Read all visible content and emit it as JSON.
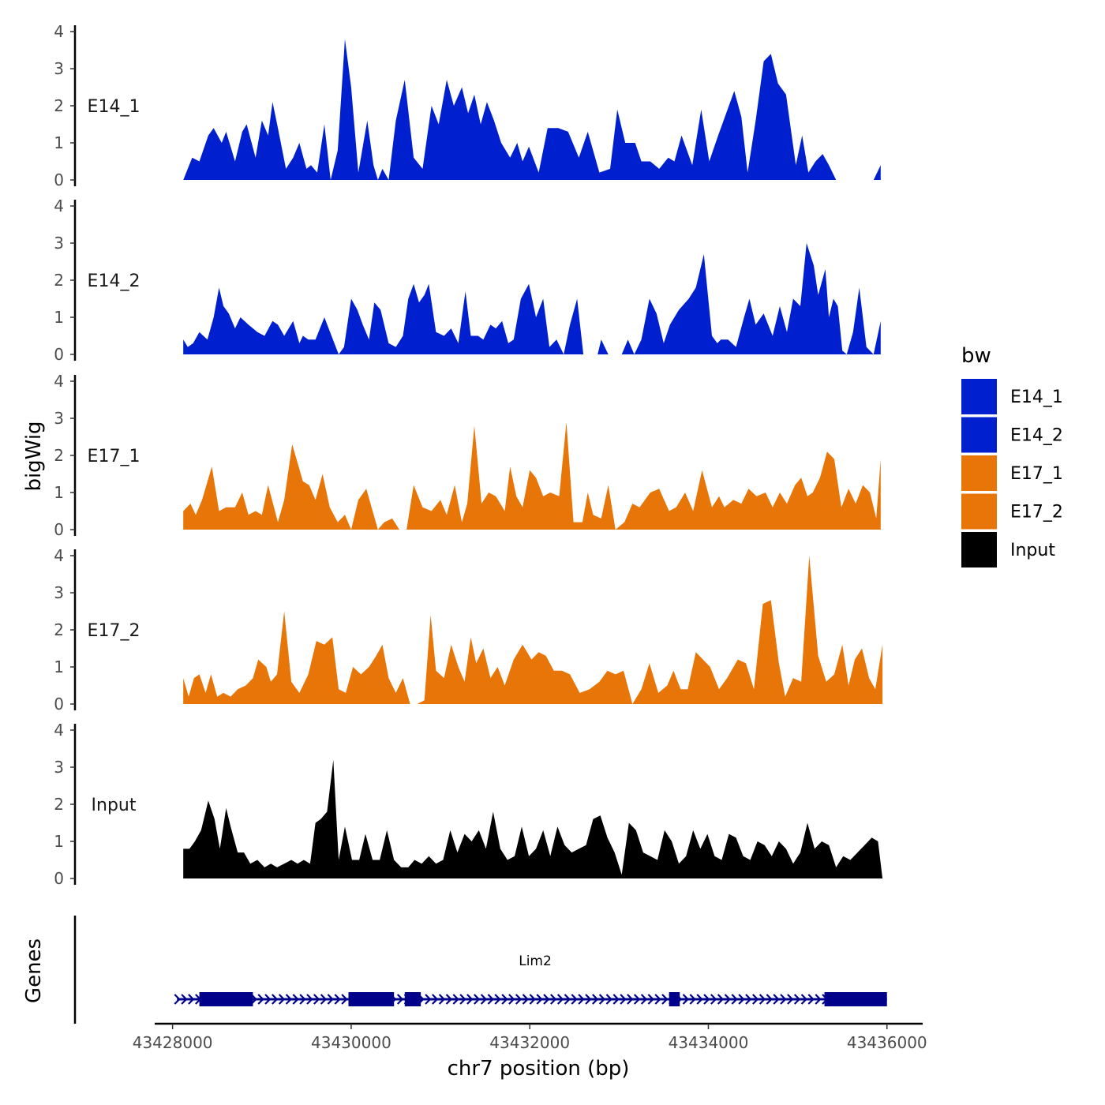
{
  "chart_data": {
    "type": "area",
    "xlabel": "chr7 position (bp)",
    "ylabel": "bigWig",
    "genes_ylabel": "Genes",
    "xlim": [
      43427800,
      43436400
    ],
    "x_ticks": [
      43428000,
      43430000,
      43432000,
      43434000,
      43436000
    ],
    "x_tick_labels": [
      "43428000",
      "43430000",
      "43432000",
      "43434000",
      "43436000"
    ],
    "ylim": [
      0,
      4
    ],
    "y_ticks": [
      0,
      1,
      2,
      3,
      4
    ],
    "y_tick_labels": [
      "0",
      "1",
      "2",
      "3",
      "4"
    ],
    "legend": {
      "title": "bw",
      "position": "right",
      "entries": [
        {
          "label": "E14_1",
          "color": "#0020CF"
        },
        {
          "label": "E14_2",
          "color": "#0020CF"
        },
        {
          "label": "E17_1",
          "color": "#E87507"
        },
        {
          "label": "E17_2",
          "color": "#E87507"
        },
        {
          "label": "Input",
          "color": "#000000"
        }
      ]
    },
    "series": [
      {
        "name": "E14_1",
        "color": "#0020CF",
        "x": [
          43428120,
          43428220,
          43428300,
          43428400,
          43428460,
          43428550,
          43428600,
          43428700,
          43428780,
          43428830,
          43428930,
          43429000,
          43429070,
          43429120,
          43429180,
          43429270,
          43429350,
          43429420,
          43429500,
          43429550,
          43429620,
          43429700,
          43429770,
          43429850,
          43429930,
          43430000,
          43430080,
          43430180,
          43430250,
          43430300,
          43430350,
          43430420,
          43430500,
          43430600,
          43430700,
          43430800,
          43430900,
          43430980,
          43431070,
          43431150,
          43431240,
          43431310,
          43431380,
          43431450,
          43431520,
          43431600,
          43431680,
          43431780,
          43431860,
          43431920,
          43431990,
          43432100,
          43432200,
          43432320,
          43432430,
          43432550,
          43432650,
          43432780,
          43432900,
          43432980,
          43433070,
          43433180,
          43433250,
          43433350,
          43433450,
          43433550,
          43433620,
          43433700,
          43433820,
          43433920,
          43434010,
          43434110,
          43434200,
          43434290,
          43434370,
          43434440,
          43434530,
          43434620,
          43434700,
          43434780,
          43434870,
          43434980,
          43435050,
          43435120,
          43435200,
          43435280,
          43435350,
          43435430,
          43435540,
          43435660,
          43435750,
          43435850,
          43435930
        ],
        "y": [
          0,
          0.6,
          0.5,
          1.2,
          1.4,
          1.0,
          1.3,
          0.5,
          1.3,
          1.5,
          0.6,
          1.6,
          1.2,
          2.1,
          1.4,
          0.3,
          0.6,
          1.0,
          0.3,
          0.4,
          0.2,
          1.5,
          0,
          0.8,
          3.8,
          2.5,
          0.2,
          1.6,
          0.4,
          0,
          0.3,
          0,
          1.6,
          2.7,
          0.6,
          0.3,
          2.0,
          1.5,
          2.7,
          2.0,
          2.5,
          1.8,
          2.3,
          1.5,
          2.1,
          1.6,
          1.0,
          0.6,
          1.0,
          0.5,
          0.9,
          0.2,
          1.4,
          1.4,
          1.3,
          0.6,
          1.3,
          0.2,
          0.3,
          1.9,
          1.0,
          1.0,
          0.5,
          0.5,
          0.3,
          0.6,
          0.5,
          1.2,
          0.4,
          1.9,
          0.5,
          1.2,
          1.8,
          2.4,
          1.7,
          0.2,
          1.6,
          3.2,
          3.4,
          2.6,
          2.3,
          0.4,
          1.2,
          0.2,
          0.5,
          0.7,
          0.4,
          0,
          0,
          0,
          0,
          0,
          0.4
        ]
      },
      {
        "name": "E14_2",
        "color": "#0020CF",
        "x": [
          43428120,
          43428170,
          43428230,
          43428300,
          43428390,
          43428460,
          43428520,
          43428570,
          43428630,
          43428700,
          43428760,
          43428850,
          43428950,
          43429030,
          43429120,
          43429180,
          43429250,
          43429350,
          43429420,
          43429460,
          43429520,
          43429600,
          43429700,
          43429780,
          43429860,
          43429920,
          43430000,
          43430070,
          43430130,
          43430200,
          43430260,
          43430330,
          43430420,
          43430500,
          43430580,
          43430640,
          43430700,
          43430760,
          43430820,
          43430870,
          43430950,
          43431040,
          43431120,
          43431200,
          43431280,
          43431340,
          43431420,
          43431480,
          43431560,
          43431620,
          43431690,
          43431760,
          43431820,
          43431900,
          43431990,
          43432070,
          43432150,
          43432220,
          43432300,
          43432380,
          43432450,
          43432530,
          43432600,
          43432680,
          43432760,
          43432800,
          43432880,
          43432950,
          43433030,
          43433100,
          43433170,
          43433250,
          43433340,
          43433420,
          43433500,
          43433570,
          43433670,
          43433780,
          43433860,
          43433950,
          43434040,
          43434100,
          43434140,
          43434220,
          43434310,
          43434400,
          43434460,
          43434530,
          43434620,
          43434720,
          43434800,
          43434880,
          43434950,
          43435030,
          43435100,
          43435180,
          43435230,
          43435310,
          43435350,
          43435400,
          43435450,
          43435500,
          43435550,
          43435620,
          43435690,
          43435770,
          43435850,
          43435930
        ],
        "y": [
          0.4,
          0.2,
          0.3,
          0.6,
          0.4,
          1.0,
          1.8,
          1.3,
          1.1,
          0.7,
          1.0,
          0.8,
          0.6,
          0.5,
          0.9,
          0.8,
          0.5,
          0.9,
          0.3,
          0.5,
          0.4,
          0.4,
          1.0,
          0.5,
          0,
          0.2,
          1.5,
          1.2,
          0.8,
          0.4,
          1.4,
          1.2,
          0.3,
          0.2,
          0.5,
          1.5,
          1.9,
          1.4,
          1.6,
          1.9,
          0.6,
          0.5,
          0.7,
          0.3,
          1.7,
          0.5,
          0.5,
          0.4,
          0.8,
          0.7,
          0.9,
          0.3,
          0.4,
          1.5,
          1.9,
          1.0,
          1.5,
          0.2,
          0.4,
          0,
          0.8,
          1.5,
          0,
          0,
          0,
          0.4,
          0,
          0,
          0,
          0.4,
          0,
          0.4,
          1.5,
          1.1,
          0.3,
          0.8,
          1.2,
          1.5,
          1.8,
          2.7,
          0.5,
          0.3,
          0.4,
          0.4,
          0.2,
          1.0,
          1.5,
          0.8,
          1.1,
          0.5,
          1.3,
          0.6,
          1.5,
          1.3,
          3.0,
          2.4,
          1.6,
          2.3,
          1.0,
          1.5,
          1.3,
          0.1,
          0,
          0.6,
          1.8,
          0.2,
          0,
          0.9
        ]
      },
      {
        "name": "E17_1",
        "color": "#E87507",
        "x": [
          43428120,
          43428200,
          43428260,
          43428330,
          43428440,
          43428520,
          43428600,
          43428700,
          43428780,
          43428850,
          43428930,
          43429000,
          43429070,
          43429180,
          43429250,
          43429340,
          43429460,
          43429530,
          43429600,
          43429680,
          43429760,
          43429850,
          43429930,
          43430000,
          43430080,
          43430170,
          43430300,
          43430370,
          43430460,
          43430540,
          43430620,
          43430700,
          43430800,
          43430900,
          43431000,
          43431070,
          43431160,
          43431240,
          43431300,
          43431380,
          43431460,
          43431540,
          43431620,
          43431720,
          43431780,
          43431850,
          43431920,
          43432000,
          43432070,
          43432150,
          43432230,
          43432330,
          43432410,
          43432490,
          43432590,
          43432650,
          43432710,
          43432800,
          43432880,
          43432960,
          43433060,
          43433150,
          43433230,
          43433350,
          43433450,
          43433560,
          43433640,
          43433740,
          43433830,
          43433930,
          43434040,
          43434120,
          43434180,
          43434280,
          43434370,
          43434450,
          43434540,
          43434640,
          43434720,
          43434800,
          43434880,
          43434970,
          43435040,
          43435110,
          43435170,
          43435250,
          43435330,
          43435410,
          43435490,
          43435570,
          43435650,
          43435730,
          43435810,
          43435880,
          43435930
        ],
        "y": [
          0.5,
          0.7,
          0.4,
          0.8,
          1.7,
          0.5,
          0.6,
          0.6,
          1.0,
          0.4,
          0.5,
          0.4,
          1.2,
          0.2,
          0.8,
          2.3,
          1.3,
          1.2,
          0.8,
          1.5,
          0.6,
          0.2,
          0.4,
          0,
          0.8,
          1.1,
          0,
          0.2,
          0.3,
          0,
          0,
          1.2,
          0.6,
          0.5,
          0.8,
          0.4,
          1.2,
          0.2,
          0.7,
          2.8,
          0.7,
          1.0,
          0.9,
          0.5,
          1.7,
          0.9,
          0.6,
          1.6,
          1.4,
          0.9,
          1.0,
          0.9,
          2.9,
          0.2,
          0.2,
          1.0,
          0.4,
          0.3,
          1.2,
          0,
          0.2,
          0.7,
          0.6,
          1.0,
          1.1,
          0.5,
          0.6,
          1.0,
          0.5,
          1.6,
          0.6,
          0.9,
          0.6,
          0.8,
          0.7,
          1.1,
          0.9,
          1.0,
          0.6,
          1.0,
          0.7,
          1.2,
          1.4,
          0.9,
          1.0,
          1.4,
          2.1,
          1.9,
          0.6,
          1.1,
          0.7,
          1.2,
          1.0,
          0.3,
          1.9
        ]
      },
      {
        "name": "E17_2",
        "color": "#E87507",
        "x": [
          43428120,
          43428180,
          43428240,
          43428300,
          43428370,
          43428430,
          43428500,
          43428570,
          43428650,
          43428730,
          43428820,
          43428900,
          43428960,
          43429050,
          43429100,
          43429170,
          43429250,
          43429330,
          43429420,
          43429520,
          43429610,
          43429700,
          43429790,
          43429860,
          43429940,
          43430020,
          43430110,
          43430200,
          43430280,
          43430350,
          43430420,
          43430500,
          43430580,
          43430660,
          43430740,
          43430820,
          43430890,
          43430950,
          43431040,
          43431120,
          43431200,
          43431270,
          43431340,
          43431400,
          43431480,
          43431560,
          43431640,
          43431720,
          43431820,
          43431920,
          43432020,
          43432100,
          43432180,
          43432270,
          43432360,
          43432450,
          43432560,
          43432670,
          43432780,
          43432870,
          43432960,
          43433050,
          43433150,
          43433250,
          43433340,
          43433440,
          43433540,
          43433610,
          43433690,
          43433770,
          43433860,
          43433940,
          43434020,
          43434120,
          43434210,
          43434330,
          43434420,
          43434510,
          43434610,
          43434700,
          43434790,
          43434860,
          43434950,
          43435040,
          43435130,
          43435230,
          43435320,
          43435410,
          43435500,
          43435570,
          43435640,
          43435720,
          43435800,
          43435870,
          43435950
        ],
        "y": [
          0.7,
          0.2,
          0.7,
          0.8,
          0.3,
          0.8,
          0.2,
          0.3,
          0.2,
          0.4,
          0.5,
          0.7,
          1.2,
          1.0,
          0.6,
          0.8,
          2.5,
          0.6,
          0.3,
          0.8,
          1.7,
          1.6,
          1.8,
          0.4,
          0.3,
          1.0,
          0.8,
          1.0,
          1.3,
          1.6,
          0.7,
          0.3,
          0.7,
          0,
          0,
          0.1,
          2.4,
          0.9,
          0.7,
          1.6,
          1.0,
          0.6,
          1.8,
          1.1,
          1.5,
          0.7,
          1.0,
          0.5,
          1.2,
          1.6,
          1.2,
          1.4,
          1.3,
          0.9,
          0.9,
          0.8,
          0.3,
          0.4,
          0.6,
          0.9,
          0.8,
          0.9,
          0,
          0.4,
          1.1,
          0.3,
          0.5,
          0.9,
          0.4,
          0.4,
          1.4,
          1.2,
          1.0,
          0.4,
          0.7,
          1.2,
          1.1,
          0.4,
          2.7,
          2.8,
          1.1,
          0.2,
          0.7,
          0.6,
          4.0,
          1.3,
          0.6,
          0.8,
          1.6,
          0.5,
          1.2,
          1.5,
          0.7,
          0.4,
          1.6
        ]
      },
      {
        "name": "Input",
        "color": "#000000",
        "x": [
          43428120,
          43428190,
          43428250,
          43428320,
          43428400,
          43428470,
          43428530,
          43428600,
          43428650,
          43428730,
          43428800,
          43428870,
          43428950,
          43429030,
          43429100,
          43429170,
          43429250,
          43429330,
          43429400,
          43429470,
          43429540,
          43429600,
          43429660,
          43429730,
          43429800,
          43429860,
          43429930,
          43430010,
          43430090,
          43430160,
          43430240,
          43430320,
          43430400,
          43430480,
          43430560,
          43430640,
          43430710,
          43430790,
          43430870,
          43430950,
          43431030,
          43431110,
          43431190,
          43431270,
          43431350,
          43431430,
          43431510,
          43431590,
          43431670,
          43431750,
          43431830,
          43431910,
          43431990,
          43432070,
          43432150,
          43432230,
          43432310,
          43432390,
          43432470,
          43432550,
          43432630,
          43432710,
          43432790,
          43432870,
          43432950,
          43433030,
          43433110,
          43433190,
          43433270,
          43433350,
          43433430,
          43433510,
          43433590,
          43433670,
          43433750,
          43433830,
          43433910,
          43433990,
          43434070,
          43434150,
          43434230,
          43434310,
          43434390,
          43434470,
          43434550,
          43434630,
          43434710,
          43434790,
          43434870,
          43434950,
          43435030,
          43435110,
          43435190,
          43435270,
          43435350,
          43435430,
          43435510,
          43435590,
          43435670,
          43435750,
          43435830,
          43435900,
          43435950
        ],
        "y": [
          0.8,
          0.8,
          1.0,
          1.3,
          2.1,
          1.6,
          0.8,
          1.9,
          1.4,
          0.7,
          0.7,
          0.4,
          0.5,
          0.3,
          0.4,
          0.3,
          0.4,
          0.5,
          0.4,
          0.5,
          0.4,
          1.5,
          1.6,
          1.8,
          3.2,
          0.5,
          1.4,
          0.5,
          0.5,
          1.2,
          0.5,
          0.5,
          1.3,
          0.5,
          0.3,
          0.3,
          0.5,
          0.4,
          0.6,
          0.4,
          0.5,
          1.3,
          0.7,
          1.2,
          1.0,
          1.3,
          0.8,
          1.8,
          0.8,
          0.5,
          0.6,
          1.4,
          0.6,
          0.8,
          1.3,
          0.6,
          1.4,
          0.9,
          0.7,
          0.8,
          0.9,
          1.6,
          1.7,
          1.1,
          0.7,
          0.1,
          1.5,
          1.3,
          0.7,
          0.6,
          0.5,
          1.3,
          1.0,
          0.4,
          0.6,
          1.3,
          0.8,
          1.2,
          0.6,
          0.5,
          1.2,
          1.1,
          0.6,
          0.5,
          1.0,
          0.9,
          0.6,
          1.0,
          0.8,
          0.4,
          0.7,
          1.5,
          0.8,
          1.0,
          0.9,
          0.3,
          0.6,
          0.5,
          0.7,
          0.9,
          1.1,
          1.0,
          0
        ]
      }
    ],
    "genes": [
      {
        "name": "Lim2",
        "color": "#00008B",
        "strand": "+",
        "start": 43428050,
        "end": 43436000,
        "exons": [
          [
            43428300,
            43428900
          ],
          [
            43429970,
            43430480
          ],
          [
            43430600,
            43430780
          ],
          [
            43433560,
            43433680
          ],
          [
            43435300,
            43436000
          ]
        ]
      }
    ]
  }
}
